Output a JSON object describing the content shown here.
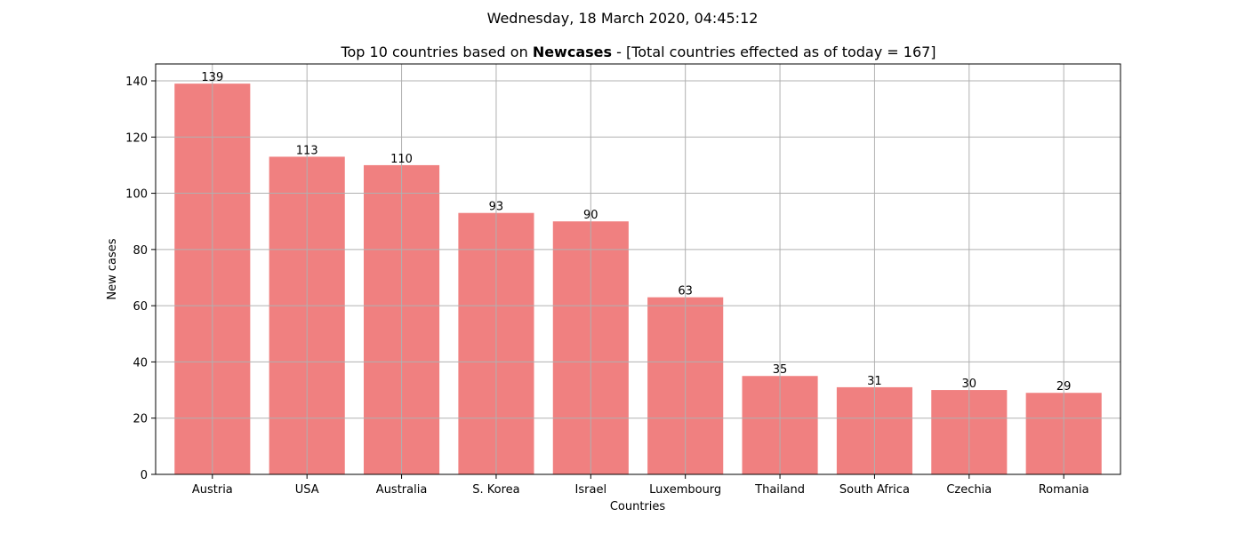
{
  "suptitle": "Wednesday, 18 March 2020, 04:45:12",
  "title": {
    "prefix": "Top 10 countries based on ",
    "bold": "Newcases",
    "suffix": " - [Total countries effected as of today = 167]"
  },
  "colors": {
    "bar": "#f08080",
    "grid": "#b0b0b0",
    "axes": "#000000"
  },
  "chart_data": {
    "type": "bar",
    "categories": [
      "Austria",
      "USA",
      "Australia",
      "S. Korea",
      "Israel",
      "Luxembourg",
      "Thailand",
      "South Africa",
      "Czechia",
      "Romania"
    ],
    "values": [
      139,
      113,
      110,
      93,
      90,
      63,
      35,
      31,
      30,
      29
    ],
    "xlabel": "Countries",
    "ylabel": "New cases",
    "ylim": [
      0,
      146
    ],
    "yticks": [
      0,
      20,
      40,
      60,
      80,
      100,
      120,
      140
    ],
    "grid": true,
    "data_labels": true
  }
}
